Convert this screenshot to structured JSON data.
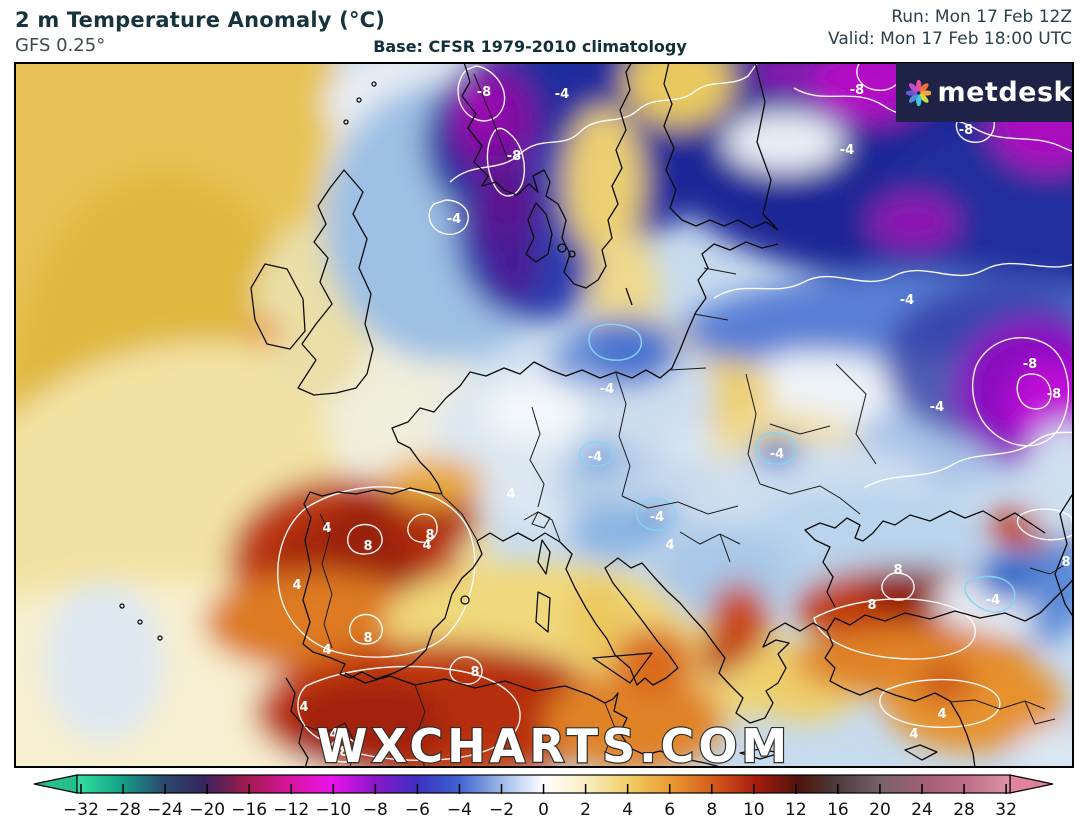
{
  "header": {
    "title": "2 m Temperature Anomaly (°C)",
    "model": "GFS 0.25°",
    "base": "Base: CFSR 1979-2010 climatology",
    "run": "Run: Mon 17 Feb 12Z",
    "valid": "Valid: Mon 17 Feb 18:00 UTC"
  },
  "map": {
    "watermark": "WXCHARTS.COM",
    "contour_values": {
      "neg8": "-8",
      "neg4": "-4",
      "pos4": "4",
      "pos8": "8"
    }
  },
  "logo": {
    "text": "metdesk",
    "bg": "#1e2247",
    "petals": [
      "#e84f9b",
      "#f0703c",
      "#f5a43c",
      "#c9d94b",
      "#45c8e0",
      "#4a90d9",
      "#6b5bd3",
      "#c04fd0"
    ]
  },
  "colorbar": {
    "units": "°C",
    "ticks": [
      {
        "label": "−32",
        "value": -32
      },
      {
        "label": "−28",
        "value": -28
      },
      {
        "label": "−24",
        "value": -24
      },
      {
        "label": "−20",
        "value": -20
      },
      {
        "label": "−16",
        "value": -16
      },
      {
        "label": "−12",
        "value": -12
      },
      {
        "label": "−10",
        "value": -10
      },
      {
        "label": "−8",
        "value": -8
      },
      {
        "label": "−6",
        "value": -6
      },
      {
        "label": "−4",
        "value": -4
      },
      {
        "label": "−2",
        "value": -2
      },
      {
        "label": "0",
        "value": 0
      },
      {
        "label": "2",
        "value": 2
      },
      {
        "label": "4",
        "value": 4
      },
      {
        "label": "6",
        "value": 6
      },
      {
        "label": "8",
        "value": 8
      },
      {
        "label": "10",
        "value": 10
      },
      {
        "label": "12",
        "value": 12
      },
      {
        "label": "16",
        "value": 16
      },
      {
        "label": "20",
        "value": 20
      },
      {
        "label": "24",
        "value": 24
      },
      {
        "label": "28",
        "value": 28
      },
      {
        "label": "32",
        "value": 32
      }
    ],
    "stops": [
      "#35e0a2",
      "#12a586",
      "#2b4a70",
      "#35255c",
      "#a11a4e",
      "#d6159c",
      "#ea13ea",
      "#8c17c8",
      "#3d2fc1",
      "#3f62cf",
      "#9db8e8",
      "#ffffff",
      "#f8eec3",
      "#f0cf66",
      "#e99b33",
      "#d35a1d",
      "#a81c10",
      "#4e140c",
      "#4e3e40",
      "#7b626c",
      "#a25f75",
      "#c06e87",
      "#dd93a7"
    ],
    "left_cap_color": "#27c08c",
    "right_cap_color": "#e0849c"
  }
}
